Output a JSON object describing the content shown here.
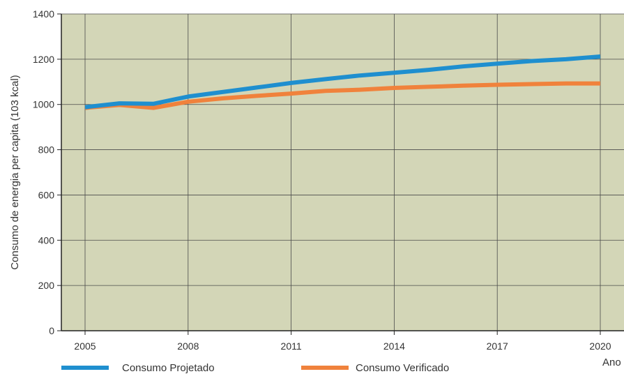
{
  "chart_data": {
    "type": "line",
    "title": "",
    "xlabel": "Ano",
    "ylabel": "Consumo de energia per capita (103 kcal)",
    "x": [
      2005,
      2006,
      2007,
      2008,
      2009,
      2010,
      2011,
      2012,
      2013,
      2014,
      2015,
      2016,
      2017,
      2018,
      2019,
      2020
    ],
    "xlim": [
      2005,
      2020
    ],
    "ylim": [
      0,
      1400
    ],
    "x_ticks": [
      "2005",
      "2008",
      "2011",
      "2014",
      "2017",
      "2020"
    ],
    "y_ticks": [
      "0",
      "200",
      "400",
      "600",
      "800",
      "1000",
      "1200",
      "1400"
    ],
    "grid": true,
    "legend_position": "bottom",
    "plot_background": "#d3d6b7",
    "series": [
      {
        "name": "Consumo Projetado",
        "color": "#1f8fcf",
        "values": [
          988,
          1005,
          1003,
          1035,
          1055,
          1075,
          1095,
          1112,
          1128,
          1140,
          1153,
          1168,
          1180,
          1192,
          1200,
          1212
        ]
      },
      {
        "name": "Consumo Verificado",
        "color": "#f0823c",
        "values": [
          985,
          998,
          985,
          1012,
          1027,
          1038,
          1048,
          1060,
          1065,
          1073,
          1078,
          1083,
          1087,
          1090,
          1093,
          1093
        ]
      }
    ]
  }
}
